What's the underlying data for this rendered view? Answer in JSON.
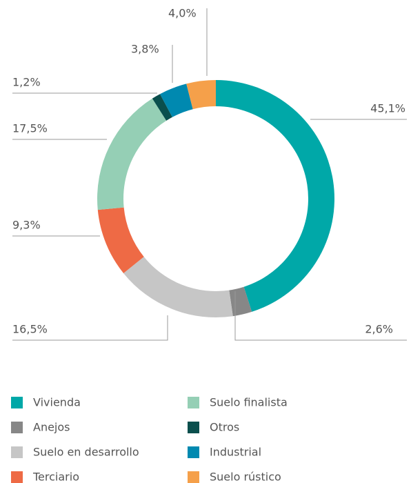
{
  "chart_data": {
    "type": "donut",
    "categories": [
      "Vivienda",
      "Anejos",
      "Suelo en desarrollo",
      "Terciario",
      "Suelo finalista",
      "Otros",
      "Industrial",
      "Suelo rústico"
    ],
    "values": [
      45.1,
      2.6,
      16.5,
      9.3,
      17.5,
      1.2,
      3.8,
      4.0
    ],
    "value_labels": [
      "45,1%",
      "2,6%",
      "16,5%",
      "9,3%",
      "17,5%",
      "1,2%",
      "3,8%",
      "4,0%"
    ],
    "colors": [
      "#00a8a8",
      "#878787",
      "#c6c6c6",
      "#ee6a45",
      "#95cfb5",
      "#0a4f4d",
      "#0089b0",
      "#f5a04a"
    ],
    "legend": "bottom"
  }
}
